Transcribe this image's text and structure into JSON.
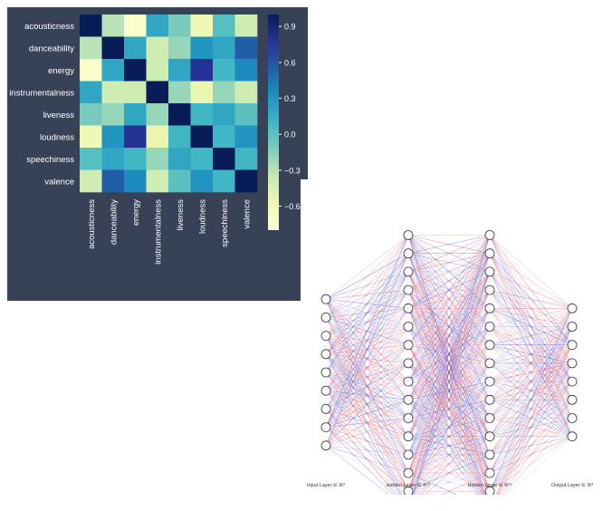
{
  "heatmap": {
    "labels": [
      "acousticness",
      "danceability",
      "energy",
      "instrumentalness",
      "liveness",
      "loudness",
      "speechiness",
      "valence"
    ],
    "matrix": [
      [
        1.0,
        -0.3,
        -0.72,
        0.2,
        -0.1,
        -0.6,
        0.02,
        -0.4
      ],
      [
        -0.3,
        1.0,
        0.2,
        -0.4,
        -0.2,
        0.3,
        0.2,
        0.55
      ],
      [
        -0.72,
        0.2,
        1.0,
        -0.4,
        0.2,
        0.78,
        0.1,
        0.35
      ],
      [
        0.2,
        -0.4,
        -0.4,
        1.0,
        -0.2,
        -0.55,
        -0.2,
        -0.4
      ],
      [
        -0.1,
        -0.2,
        0.2,
        -0.2,
        1.0,
        0.1,
        0.2,
        0.0
      ],
      [
        -0.6,
        0.3,
        0.78,
        -0.55,
        0.1,
        1.0,
        0.1,
        0.3
      ],
      [
        0.02,
        0.2,
        0.1,
        -0.2,
        0.2,
        0.1,
        1.0,
        0.1
      ],
      [
        -0.4,
        0.55,
        0.35,
        -0.4,
        0.0,
        0.3,
        0.1,
        1.0
      ]
    ],
    "colorbar": {
      "min": -0.8,
      "max": 1.0,
      "ticks": [
        0.9,
        0.6,
        0.3,
        0.0,
        -0.3,
        -0.6
      ],
      "tick_labels": [
        "0.9",
        "0.6",
        "0.3",
        "0.0",
        "−0.3",
        "−0.6"
      ],
      "colors": [
        "#ffffd9",
        "#edf8b1",
        "#c7e9b4",
        "#7fcdbb",
        "#41b6c4",
        "#1d91c0",
        "#225ea8",
        "#253494",
        "#081d58"
      ]
    },
    "label_color": "#ffffff",
    "background": "#384257"
  },
  "network": {
    "layers": [
      {
        "nodes": 9,
        "label": "Input Layer ∈ ℝ⁹"
      },
      {
        "nodes": 16,
        "label": "Hidden Layer ∈ ℝ¹⁶"
      },
      {
        "nodes": 16,
        "label": "Hidden Layer ∈ ℝ¹⁶"
      },
      {
        "nodes": 8,
        "label": "Output Layer ∈ ℝ⁸"
      }
    ],
    "edge_colors": [
      "#e8414a",
      "#3b4fd8"
    ]
  }
}
